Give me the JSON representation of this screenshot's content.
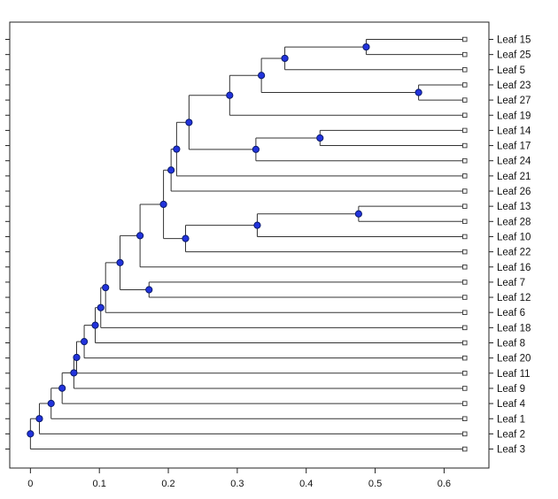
{
  "node_color": "#2233dd",
  "leaves": [
    "Leaf 15",
    "Leaf 25",
    "Leaf 5",
    "Leaf 23",
    "Leaf 27",
    "Leaf 19",
    "Leaf 14",
    "Leaf 17",
    "Leaf 24",
    "Leaf 21",
    "Leaf 26",
    "Leaf 13",
    "Leaf 28",
    "Leaf 10",
    "Leaf 22",
    "Leaf 16",
    "Leaf 7",
    "Leaf 12",
    "Leaf 6",
    "Leaf 18",
    "Leaf 8",
    "Leaf 20",
    "Leaf 11",
    "Leaf 9",
    "Leaf 4",
    "Leaf 1",
    "Leaf 2",
    "Leaf 3"
  ],
  "x_axis": {
    "range": [
      -0.03,
      0.665
    ],
    "ticks": [
      0,
      0.1,
      0.2,
      0.3,
      0.4,
      0.5,
      0.6
    ],
    "tick_labels": [
      "0",
      "0.1",
      "0.2",
      "0.3",
      "0.4",
      "0.5",
      "0.6"
    ]
  },
  "leaf_height": 0.63,
  "tree": {
    "h": 0.0,
    "c": [
      {
        "h": 0.013,
        "c": [
          {
            "h": 0.03,
            "c": [
              {
                "h": 0.046,
                "c": [
                  {
                    "h": 0.063,
                    "c": [
                      {
                        "h": 0.067,
                        "c": [
                          {
                            "h": 0.078,
                            "c": [
                              {
                                "h": 0.094,
                                "c": [
                                  {
                                    "h": 0.102,
                                    "c": [
                                      {
                                        "h": 0.109,
                                        "c": [
                                          {
                                            "h": 0.13,
                                            "c": [
                                              {
                                                "h": 0.159,
                                                "c": [
                                                  {
                                                    "h": 0.193,
                                                    "c": [
                                                      {
                                                        "h": 0.204,
                                                        "c": [
                                                          {
                                                            "h": 0.212,
                                                            "c": [
                                                              {
                                                                "h": 0.23,
                                                                "c": [
                                                                  {
                                                                    "h": 0.289,
                                                                    "c": [
                                                                      {
                                                                        "h": 0.335,
                                                                        "c": [
                                                                          {
                                                                            "h": 0.369,
                                                                            "c": [
                                                                              {
                                                                                "h": 0.487,
                                                                                "c": [
                                                                                  {
                                                                                    "l": "Leaf 15"
                                                                                  },
                                                                                  {
                                                                                    "l": "Leaf 25"
                                                                                  }
                                                                                ]
                                                                              },
                                                                              {
                                                                                "l": "Leaf 5"
                                                                              }
                                                                            ]
                                                                          },
                                                                          {
                                                                            "h": 0.563,
                                                                            "c": [
                                                                              {
                                                                                "l": "Leaf 23"
                                                                              },
                                                                              {
                                                                                "l": "Leaf 27"
                                                                              }
                                                                            ]
                                                                          }
                                                                        ]
                                                                      },
                                                                      {
                                                                        "l": "Leaf 19"
                                                                      }
                                                                    ]
                                                                  },
                                                                  {
                                                                    "h": 0.327,
                                                                    "c": [
                                                                      {
                                                                        "h": 0.42,
                                                                        "c": [
                                                                          {
                                                                            "l": "Leaf 14"
                                                                          },
                                                                          {
                                                                            "l": "Leaf 17"
                                                                          }
                                                                        ]
                                                                      },
                                                                      {
                                                                        "l": "Leaf 24"
                                                                      }
                                                                    ]
                                                                  }
                                                                ]
                                                              },
                                                              {
                                                                "l": "Leaf 21"
                                                              }
                                                            ]
                                                          },
                                                          {
                                                            "l": "Leaf 26"
                                                          }
                                                        ]
                                                      },
                                                      {
                                                        "h": 0.225,
                                                        "c": [
                                                          {
                                                            "h": 0.329,
                                                            "c": [
                                                              {
                                                                "h": 0.476,
                                                                "c": [
                                                                  {
                                                                    "l": "Leaf 13"
                                                                  },
                                                                  {
                                                                    "l": "Leaf 28"
                                                                  }
                                                                ]
                                                              },
                                                              {
                                                                "l": "Leaf 10"
                                                              }
                                                            ]
                                                          },
                                                          {
                                                            "l": "Leaf 22"
                                                          }
                                                        ]
                                                      }
                                                    ]
                                                  },
                                                  {
                                                    "l": "Leaf 16"
                                                  }
                                                ]
                                              },
                                              {
                                                "h": 0.172,
                                                "c": [
                                                  {
                                                    "l": "Leaf 7"
                                                  },
                                                  {
                                                    "l": "Leaf 12"
                                                  }
                                                ]
                                              }
                                            ]
                                          },
                                          {
                                            "l": "Leaf 6"
                                          }
                                        ]
                                      },
                                      {
                                        "l": "Leaf 18"
                                      }
                                    ]
                                  },
                                  {
                                    "l": "Leaf 8"
                                  }
                                ]
                              },
                              {
                                "l": "Leaf 20"
                              }
                            ]
                          },
                          {
                            "l": "Leaf 11"
                          }
                        ]
                      },
                      {
                        "l": "Leaf 9"
                      }
                    ]
                  },
                  {
                    "l": "Leaf 4"
                  }
                ]
              },
              {
                "l": "Leaf 1"
              }
            ]
          },
          {
            "l": "Leaf 2"
          }
        ]
      },
      {
        "l": "Leaf 3"
      }
    ]
  }
}
